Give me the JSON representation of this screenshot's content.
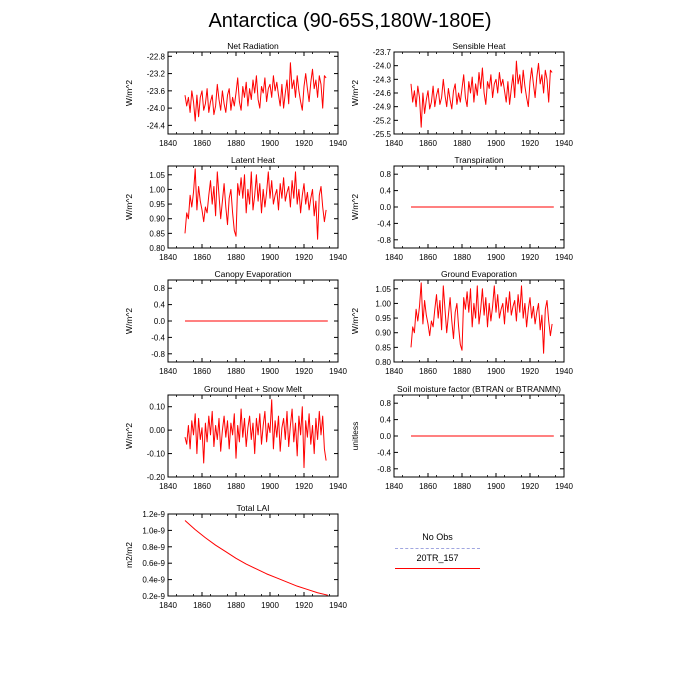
{
  "page_title": "Antarctica (90-65S,180W-180E)",
  "colors": {
    "model_line": "#ff0000",
    "obs_line": "#a0a6e0",
    "axis": "#000000"
  },
  "legend": {
    "title": "No Obs",
    "obs_label": "",
    "model_label": "20TR_157"
  },
  "chart_data": [
    {
      "id": "net-radiation",
      "type": "line",
      "title": "Net Radiation",
      "ylabel": "W/m^2",
      "xlim": [
        1840,
        1940
      ],
      "xticks": [
        1840,
        1860,
        1880,
        1900,
        1920,
        1940
      ],
      "ylim": [
        -24.6,
        -22.7
      ],
      "yticks": [
        -24.4,
        -24.0,
        -23.6,
        -23.2,
        -22.8
      ],
      "ytick_labels": [
        "-24.4",
        "-24.0",
        "-23.6",
        "-23.2",
        "-22.8"
      ],
      "x_start": 1850,
      "x_step": 1,
      "series": [
        {
          "values": [
            -23.7,
            -23.95,
            -23.75,
            -24.1,
            -23.6,
            -23.85,
            -24.3,
            -23.7,
            -24.2,
            -23.75,
            -23.6,
            -24.05,
            -23.9,
            -23.55,
            -24.1,
            -23.85,
            -23.7,
            -24.15,
            -23.95,
            -23.45,
            -23.8,
            -24.05,
            -23.6,
            -23.9,
            -24.1,
            -23.7,
            -23.55,
            -24.05,
            -23.75,
            -23.95,
            -23.65,
            -23.3,
            -23.85,
            -24.05,
            -23.5,
            -23.75,
            -23.4,
            -23.95,
            -23.55,
            -23.8,
            -23.35,
            -23.65,
            -23.25,
            -23.8,
            -24.0,
            -23.5,
            -23.65,
            -23.3,
            -23.85,
            -23.55,
            -23.45,
            -23.75,
            -23.25,
            -23.6,
            -23.4,
            -23.7,
            -23.95,
            -23.45,
            -24.0,
            -23.65,
            -23.35,
            -23.9,
            -22.95,
            -23.55,
            -23.35,
            -23.75,
            -23.25,
            -23.6,
            -23.85,
            -24.05,
            -23.5,
            -23.2,
            -23.55,
            -23.85,
            -23.4,
            -23.1,
            -23.55,
            -23.35,
            -23.75,
            -23.25,
            -23.45,
            -24.0,
            -23.25,
            -23.3
          ]
        }
      ]
    },
    {
      "id": "sensible-heat",
      "type": "line",
      "title": "Sensible Heat",
      "ylabel": "W/m^2",
      "xlim": [
        1840,
        1940
      ],
      "xticks": [
        1840,
        1860,
        1880,
        1900,
        1920,
        1940
      ],
      "ylim": [
        -25.5,
        -23.7
      ],
      "yticks": [
        -25.5,
        -25.2,
        -24.9,
        -24.6,
        -24.3,
        -24.0,
        -23.7
      ],
      "ytick_labels": [
        "-25.5",
        "-25.2",
        "-24.9",
        "-24.6",
        "-24.3",
        "-24.0",
        "-23.7"
      ],
      "x_start": 1850,
      "x_step": 1,
      "series": [
        {
          "values": [
            -24.4,
            -24.8,
            -24.55,
            -24.9,
            -24.45,
            -24.7,
            -25.35,
            -24.6,
            -25.05,
            -24.75,
            -24.55,
            -24.95,
            -24.8,
            -24.45,
            -24.9,
            -24.65,
            -24.5,
            -24.85,
            -24.7,
            -24.3,
            -24.65,
            -24.9,
            -24.5,
            -24.75,
            -24.95,
            -24.55,
            -24.4,
            -24.85,
            -24.6,
            -24.8,
            -24.5,
            -24.2,
            -24.7,
            -24.9,
            -24.35,
            -24.6,
            -24.25,
            -24.8,
            -24.4,
            -24.65,
            -24.15,
            -24.5,
            -24.05,
            -24.6,
            -24.85,
            -24.35,
            -24.5,
            -24.2,
            -24.7,
            -24.4,
            -24.3,
            -24.6,
            -24.15,
            -24.45,
            -24.3,
            -24.55,
            -24.8,
            -24.35,
            -24.85,
            -24.5,
            -24.2,
            -24.7,
            -23.9,
            -24.4,
            -24.2,
            -24.6,
            -24.1,
            -24.45,
            -24.7,
            -24.9,
            -24.35,
            -24.05,
            -24.4,
            -24.7,
            -24.25,
            -23.95,
            -24.4,
            -24.2,
            -24.6,
            -24.1,
            -24.3,
            -24.8,
            -24.1,
            -24.15
          ]
        }
      ]
    },
    {
      "id": "latent-heat",
      "type": "line",
      "title": "Latent Heat",
      "ylabel": "W/m^2",
      "xlim": [
        1840,
        1940
      ],
      "xticks": [
        1840,
        1860,
        1880,
        1900,
        1920,
        1940
      ],
      "ylim": [
        0.8,
        1.08
      ],
      "yticks": [
        0.8,
        0.85,
        0.9,
        0.95,
        1.0,
        1.05
      ],
      "ytick_labels": [
        "0.80",
        "0.85",
        "0.90",
        "0.95",
        "1.00",
        "1.05"
      ],
      "x_start": 1850,
      "x_step": 1,
      "series": [
        {
          "values": [
            0.85,
            0.92,
            0.9,
            0.98,
            0.94,
            0.99,
            1.07,
            0.93,
            1.01,
            0.96,
            0.93,
            0.89,
            0.94,
            0.92,
            0.98,
            1.03,
            0.95,
            1.01,
            0.91,
            1.06,
            0.98,
            0.9,
            0.96,
            1.02,
            0.94,
            0.88,
            0.97,
            1.0,
            0.92,
            0.86,
            0.84,
            1.02,
            0.98,
            1.04,
            0.97,
            1.05,
            0.92,
            1.0,
            0.95,
            1.06,
            0.93,
            0.98,
            1.05,
            0.96,
            1.02,
            0.92,
            1.0,
            0.94,
            0.99,
            1.06,
            0.97,
            1.03,
            0.95,
            0.98,
            1.0,
            0.93,
            1.02,
            0.97,
            1.04,
            0.96,
            0.99,
            1.01,
            0.94,
            1.03,
            0.97,
            1.06,
            0.95,
            1.0,
            0.92,
            0.98,
            1.02,
            0.95,
            0.99,
            0.93,
            0.97,
            1.0,
            0.91,
            0.96,
            0.83,
            0.98,
            1.01,
            0.94,
            0.89,
            0.93
          ]
        }
      ]
    },
    {
      "id": "transpiration",
      "type": "line",
      "title": "Transpiration",
      "ylabel": "W/m^2",
      "xlim": [
        1840,
        1940
      ],
      "xticks": [
        1840,
        1860,
        1880,
        1900,
        1920,
        1940
      ],
      "ylim": [
        -1.0,
        1.0
      ],
      "yticks": [
        -0.8,
        -0.4,
        0.0,
        0.4,
        0.8
      ],
      "ytick_labels": [
        "-0.8",
        "-0.4",
        "0.0",
        "0.4",
        "0.8"
      ],
      "x_start": 1850,
      "x_step": 84,
      "series": [
        {
          "values": [
            0,
            0
          ]
        }
      ]
    },
    {
      "id": "canopy-evaporation",
      "type": "line",
      "title": "Canopy Evaporation",
      "ylabel": "W/m^2",
      "xlim": [
        1840,
        1940
      ],
      "xticks": [
        1840,
        1860,
        1880,
        1900,
        1920,
        1940
      ],
      "ylim": [
        -1.0,
        1.0
      ],
      "yticks": [
        -0.8,
        -0.4,
        0.0,
        0.4,
        0.8
      ],
      "ytick_labels": [
        "-0.8",
        "-0.4",
        "0.0",
        "0.4",
        "0.8"
      ],
      "x_start": 1850,
      "x_step": 84,
      "series": [
        {
          "values": [
            0,
            0
          ]
        }
      ]
    },
    {
      "id": "ground-evaporation",
      "type": "line",
      "title": "Ground Evaporation",
      "ylabel": "W/m^2",
      "xlim": [
        1840,
        1940
      ],
      "xticks": [
        1840,
        1860,
        1880,
        1900,
        1920,
        1940
      ],
      "ylim": [
        0.8,
        1.08
      ],
      "yticks": [
        0.8,
        0.85,
        0.9,
        0.95,
        1.0,
        1.05
      ],
      "ytick_labels": [
        "0.80",
        "0.85",
        "0.90",
        "0.95",
        "1.00",
        "1.05"
      ],
      "x_start": 1850,
      "x_step": 1,
      "series": [
        {
          "values": [
            0.85,
            0.92,
            0.9,
            0.98,
            0.94,
            0.99,
            1.07,
            0.93,
            1.01,
            0.96,
            0.93,
            0.89,
            0.94,
            0.92,
            0.98,
            1.03,
            0.95,
            1.01,
            0.91,
            1.06,
            0.98,
            0.9,
            0.96,
            1.02,
            0.94,
            0.88,
            0.97,
            1.0,
            0.92,
            0.86,
            0.84,
            1.02,
            0.98,
            1.04,
            0.97,
            1.05,
            0.92,
            1.0,
            0.95,
            1.06,
            0.93,
            0.98,
            1.05,
            0.96,
            1.02,
            0.92,
            1.0,
            0.94,
            0.99,
            1.06,
            0.97,
            1.03,
            0.95,
            0.98,
            1.0,
            0.93,
            1.02,
            0.97,
            1.04,
            0.96,
            0.99,
            1.01,
            0.94,
            1.03,
            0.97,
            1.06,
            0.95,
            1.0,
            0.92,
            0.98,
            1.02,
            0.95,
            0.99,
            0.93,
            0.97,
            1.0,
            0.91,
            0.96,
            0.83,
            0.98,
            1.01,
            0.94,
            0.89,
            0.93
          ]
        }
      ]
    },
    {
      "id": "ground-heat-snow-melt",
      "type": "line",
      "title": "Ground Heat + Snow Melt",
      "ylabel": "W/m^2",
      "xlim": [
        1840,
        1940
      ],
      "xticks": [
        1840,
        1860,
        1880,
        1900,
        1920,
        1940
      ],
      "ylim": [
        -0.2,
        0.15
      ],
      "yticks": [
        -0.2,
        -0.1,
        0.0,
        0.1
      ],
      "ytick_labels": [
        "-0.20",
        "-0.10",
        "0.00",
        "0.10"
      ],
      "x_start": 1850,
      "x_step": 1,
      "series": [
        {
          "values": [
            -0.03,
            -0.06,
            0.02,
            -0.08,
            0.04,
            -0.02,
            0.07,
            -0.1,
            0.05,
            -0.04,
            0.01,
            -0.14,
            0.03,
            -0.05,
            0.06,
            -0.02,
            0.08,
            -0.07,
            0.02,
            -0.04,
            0.05,
            -0.09,
            0.0,
            0.06,
            -0.03,
            0.04,
            -0.08,
            0.03,
            -0.02,
            0.07,
            -0.12,
            0.02,
            -0.05,
            0.09,
            -0.03,
            0.05,
            -0.07,
            0.01,
            0.06,
            -0.04,
            0.03,
            -0.1,
            0.05,
            -0.02,
            0.07,
            -0.06,
            0.02,
            0.08,
            -0.05,
            0.03,
            -0.01,
            0.13,
            -0.08,
            0.04,
            -0.03,
            0.06,
            -0.09,
            0.01,
            0.05,
            -0.04,
            0.08,
            -0.07,
            0.02,
            0.09,
            -0.05,
            0.03,
            -0.11,
            0.06,
            -0.02,
            0.1,
            -0.16,
            0.04,
            -0.03,
            0.07,
            -0.06,
            0.02,
            -0.1,
            0.05,
            -0.04,
            0.08,
            -0.02,
            0.06,
            -0.08,
            -0.13
          ]
        }
      ]
    },
    {
      "id": "soil-moisture-factor",
      "type": "line",
      "title": "Soil moisture factor (BTRAN or BTRANMN)",
      "ylabel": "unitless",
      "xlim": [
        1840,
        1940
      ],
      "xticks": [
        1840,
        1860,
        1880,
        1900,
        1920,
        1940
      ],
      "ylim": [
        -1.0,
        1.0
      ],
      "yticks": [
        -0.8,
        -0.4,
        0.0,
        0.4,
        0.8
      ],
      "ytick_labels": [
        "-0.8",
        "-0.4",
        "0.0",
        "0.4",
        "0.8"
      ],
      "x_start": 1850,
      "x_step": 84,
      "series": [
        {
          "values": [
            0,
            0
          ]
        }
      ]
    },
    {
      "id": "total-lai",
      "type": "line",
      "title": "Total LAI",
      "ylabel": "m2/m2",
      "xlim": [
        1840,
        1940
      ],
      "xticks": [
        1840,
        1860,
        1880,
        1900,
        1920,
        1940
      ],
      "ylim": [
        2e-10,
        1.2e-09
      ],
      "yticks": [
        2e-10,
        4e-10,
        6e-10,
        8e-10,
        1e-09,
        1.2e-09
      ],
      "ytick_labels": [
        "0.2e-9",
        "0.4e-9",
        "0.6e-9",
        "0.8e-9",
        "1.0e-9",
        "1.2e-9"
      ],
      "x_start": 1850,
      "x_step": 6,
      "series": [
        {
          "values": [
            1.12e-09,
            1.01e-09,
            9.1e-10,
            8.2e-10,
            7.4e-10,
            6.6e-10,
            5.9e-10,
            5.3e-10,
            4.7e-10,
            4.2e-10,
            3.7e-10,
            3.2e-10,
            2.8e-10,
            2.4e-10,
            2.1e-10
          ]
        }
      ]
    }
  ]
}
